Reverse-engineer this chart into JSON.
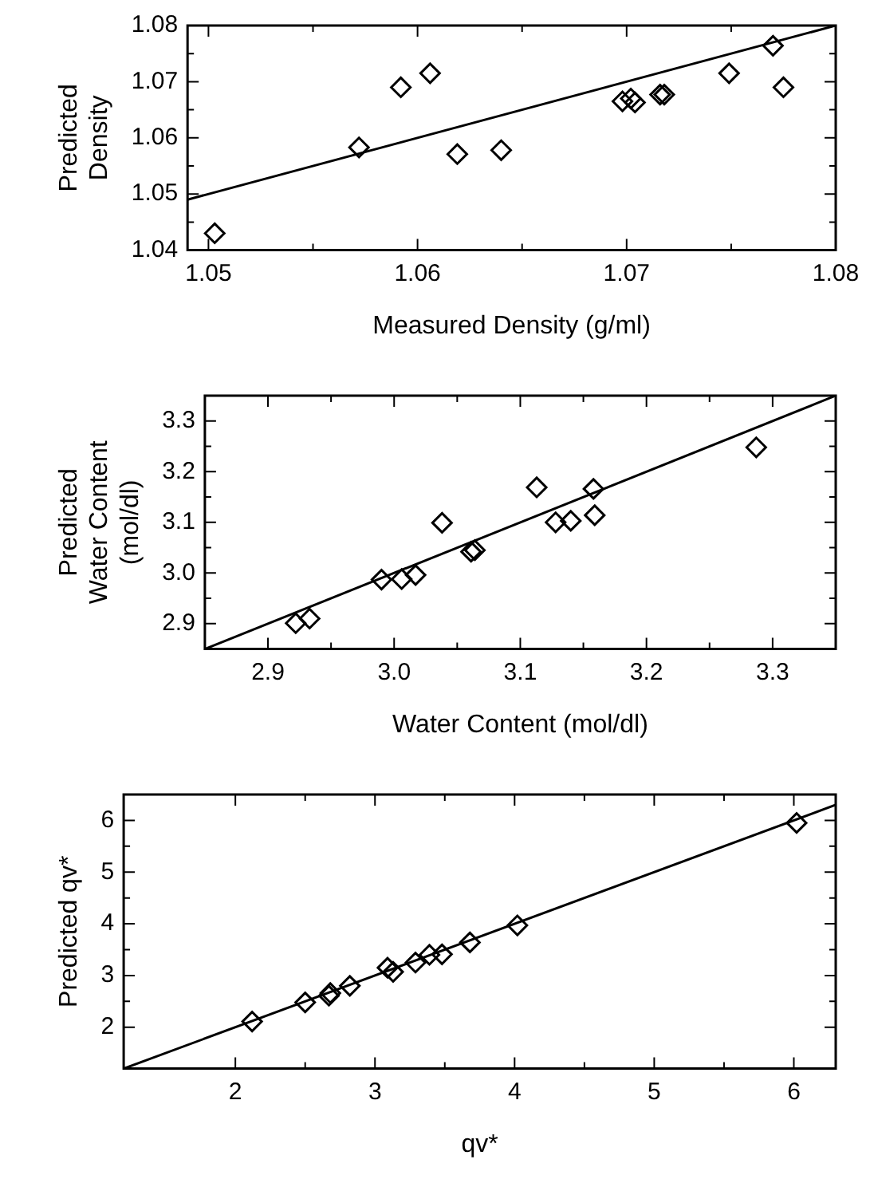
{
  "chart_data": [
    {
      "type": "scatter",
      "xlabel": "Measured Density (g/ml)",
      "ylabel": "Predicted Density",
      "grid": false,
      "xlim": [
        1.049,
        1.08
      ],
      "ylim": [
        1.04,
        1.08
      ],
      "xticks": [
        1.05,
        {
          "value": 1.055,
          "label": null
        },
        1.06,
        {
          "value": 1.065,
          "label": null
        },
        1.07,
        {
          "value": 1.075,
          "label": null
        },
        1.08
      ],
      "yticks": [
        1.04,
        {
          "value": 1.045,
          "label": null
        },
        1.05,
        {
          "value": 1.055,
          "label": null
        },
        1.06,
        {
          "value": 1.065,
          "label": null
        },
        1.07,
        {
          "value": 1.075,
          "label": null
        },
        1.08
      ],
      "series": [
        {
          "type": "scatter",
          "marker": "diamond",
          "color": "#000000",
          "x": [
            1.0503,
            1.0572,
            1.0592,
            1.0606,
            1.0619,
            1.064,
            1.0698,
            1.0702,
            1.0704,
            1.0716,
            1.0718,
            1.0749,
            1.077,
            1.0775
          ],
          "values": [
            1.043,
            1.0583,
            1.069,
            1.0715,
            1.0571,
            1.0578,
            1.0665,
            1.067,
            1.0663,
            1.0677,
            1.0677,
            1.0715,
            1.0764,
            1.069
          ]
        },
        {
          "type": "line",
          "marker": "none",
          "color": "#000000",
          "x": [
            1.049,
            1.08
          ],
          "values": [
            1.049,
            1.08
          ]
        }
      ]
    },
    {
      "type": "scatter",
      "xlabel": "Water Content (mol/dl)",
      "ylabel": "Predicted Water Content (mol/dl)",
      "grid": false,
      "xlim": [
        2.85,
        3.35
      ],
      "ylim": [
        2.85,
        3.35
      ],
      "xticks": [
        2.9,
        {
          "value": 2.95,
          "label": null
        },
        {
          "value": 3,
          "label": "3.0"
        },
        {
          "value": 3.05,
          "label": null
        },
        3.1,
        {
          "value": 3.15,
          "label": null
        },
        3.2,
        {
          "value": 3.25,
          "label": null
        },
        3.3
      ],
      "yticks": [
        2.9,
        {
          "value": 2.95,
          "label": null
        },
        {
          "value": 3,
          "label": "3.0"
        },
        {
          "value": 3.05,
          "label": null
        },
        3.1,
        {
          "value": 3.15,
          "label": null
        },
        3.2,
        {
          "value": 3.25,
          "label": null
        },
        3.3
      ],
      "series": [
        {
          "type": "scatter",
          "marker": "diamond",
          "color": "#000000",
          "x": [
            2.922,
            2.933,
            2.99,
            3.006,
            3.017,
            3.038,
            3.061,
            3.064,
            3.113,
            3.128,
            3.14,
            3.158,
            3.159,
            3.287
          ],
          "values": [
            2.901,
            2.91,
            2.987,
            2.988,
            2.996,
            3.099,
            3.042,
            3.045,
            3.169,
            3.1,
            3.103,
            3.166,
            3.114,
            3.248
          ]
        },
        {
          "type": "line",
          "marker": "none",
          "color": "#000000",
          "x": [
            2.85,
            3.35
          ],
          "values": [
            2.85,
            3.35
          ]
        }
      ]
    },
    {
      "type": "scatter",
      "xlabel": "qv*",
      "ylabel": "Predicted qv*",
      "grid": false,
      "xlim": [
        1.2,
        6.3
      ],
      "ylim": [
        1.2,
        6.5
      ],
      "xticks": [
        2,
        {
          "value": 2.5,
          "label": null
        },
        3,
        {
          "value": 3.5,
          "label": null
        },
        4,
        {
          "value": 4.5,
          "label": null
        },
        5,
        {
          "value": 5.5,
          "label": null
        },
        6
      ],
      "yticks": [
        2,
        {
          "value": 2.5,
          "label": null
        },
        3,
        {
          "value": 3.5,
          "label": null
        },
        4,
        {
          "value": 4.5,
          "label": null
        },
        5,
        {
          "value": 5.5,
          "label": null
        },
        6
      ],
      "series": [
        {
          "type": "scatter",
          "marker": "diamond",
          "color": "#000000",
          "x": [
            2.12,
            2.5,
            2.67,
            2.68,
            2.82,
            3.09,
            3.13,
            3.29,
            3.39,
            3.48,
            3.68,
            4.02,
            6.02
          ],
          "values": [
            2.11,
            2.48,
            2.61,
            2.66,
            2.8,
            3.15,
            3.07,
            3.25,
            3.4,
            3.41,
            3.64,
            3.97,
            5.95
          ]
        },
        {
          "type": "line",
          "marker": "none",
          "color": "#000000",
          "x": [
            1.2,
            6.3
          ],
          "values": [
            1.2,
            6.3
          ]
        }
      ]
    }
  ]
}
